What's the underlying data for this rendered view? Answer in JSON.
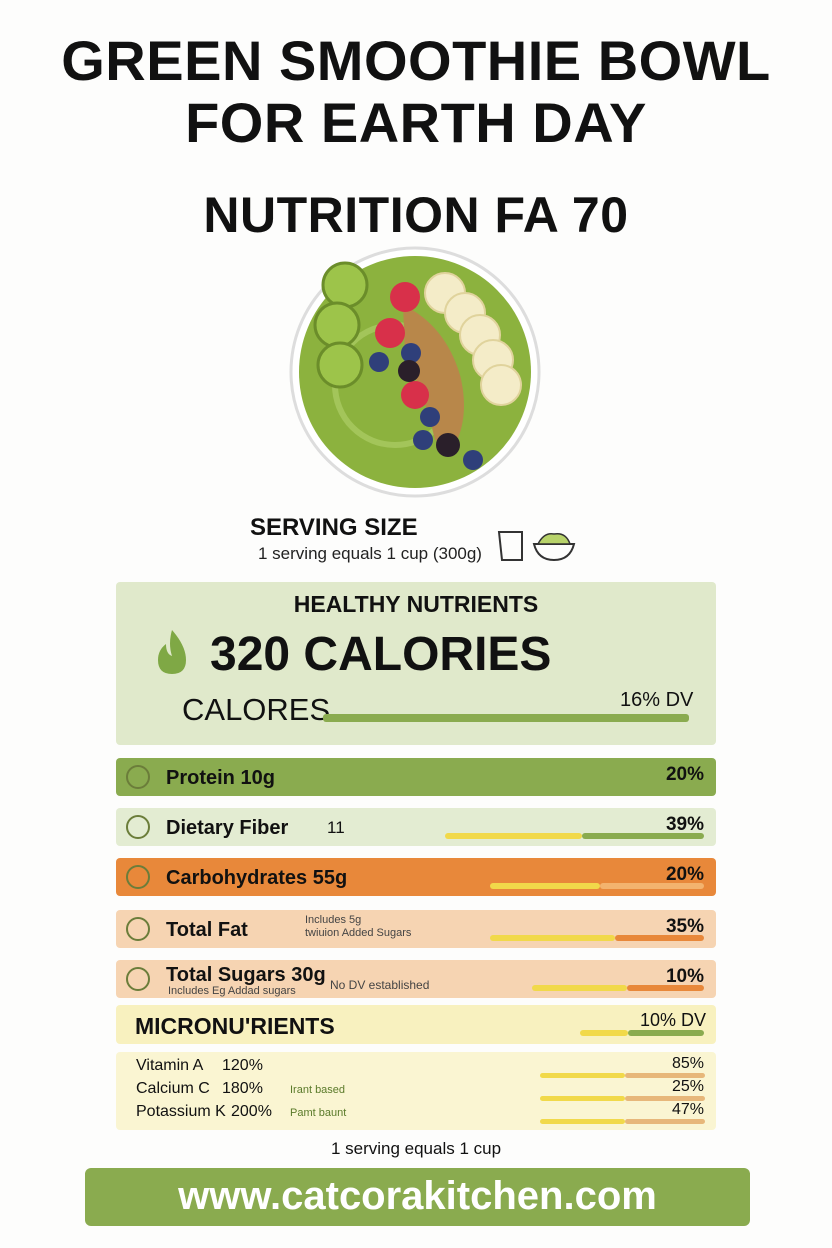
{
  "header": {
    "title_line1": "GREEN SMOOTHIE BOWL",
    "title_line2": "FOR EARTH DAY",
    "subtitle": "NUTRITION FA  70"
  },
  "serving": {
    "label": "SERVING SIZE",
    "text": "1 serving equals 1 cup (300g)"
  },
  "calories": {
    "heading": "HEALTHY NUTRIENTS",
    "value": "320 CALORIES",
    "label": "CALORES",
    "dv": "16% DV"
  },
  "nutrients": [
    {
      "name": "Protein 10g",
      "dv": "20%"
    },
    {
      "name": "Dietary Fiber",
      "note": "11",
      "dv": "39%"
    },
    {
      "name": "Carbohydrates 55g",
      "dv": "20%"
    },
    {
      "name": "Total Fat",
      "note": "Includes 5g",
      "note2": "twiuion Added Sugars",
      "dv": "35%"
    },
    {
      "name": "Total Sugars 30g",
      "note": "No DV established",
      "note2": "Includes Eg Addad sugars",
      "dv": "10%"
    }
  ],
  "micronutrients": {
    "heading": "MICRONU'RIENTS",
    "dv": "10% DV",
    "rows": [
      {
        "name": "Vitamin A",
        "amount": "120%",
        "dv": "85%"
      },
      {
        "name": "Calcium C",
        "amount": "180%",
        "note": "Irant based",
        "dv": "25%"
      },
      {
        "name": "Potassium K",
        "amount": "200%",
        "note": "Pamt baunt",
        "dv": "47%"
      }
    ]
  },
  "footer": {
    "serving": "1 serving equals 1 cup",
    "url": "www.catcorakitchen.com"
  }
}
